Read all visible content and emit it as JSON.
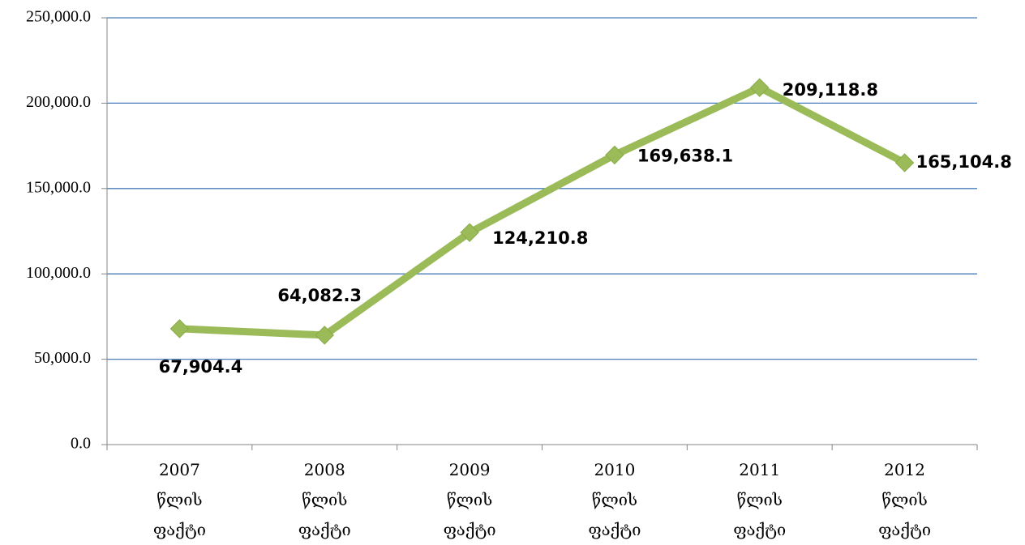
{
  "chart_data": {
    "type": "line",
    "categories": [
      "2007 წლის ფაქტი",
      "2008 წლის ფაქტი",
      "2009 წლის ფაქტი",
      "2010 წლის ფაქტი",
      "2011 წლის ფაქტი",
      "2012 წლის ფაქტი"
    ],
    "series": [
      {
        "color": "#9bbb59",
        "values": [
          67904.4,
          64082.3,
          124210.8,
          169638.1,
          209118.8,
          165104.8
        ],
        "value_labels": [
          "67,904.4",
          "64,082.3",
          "124,210.8",
          "169,638.1",
          "209,118.8",
          "165,104.8"
        ]
      }
    ],
    "ylim": [
      0,
      250000
    ],
    "yticks": [
      {
        "value": 0,
        "label": "0.0"
      },
      {
        "value": 50000,
        "label": "50,000.0"
      },
      {
        "value": 100000,
        "label": "100,000.0"
      },
      {
        "value": 150000,
        "label": "150,000.0"
      },
      {
        "value": 200000,
        "label": "200,000.0"
      },
      {
        "value": 250000,
        "label": "250,000.0"
      }
    ],
    "grid": true
  }
}
